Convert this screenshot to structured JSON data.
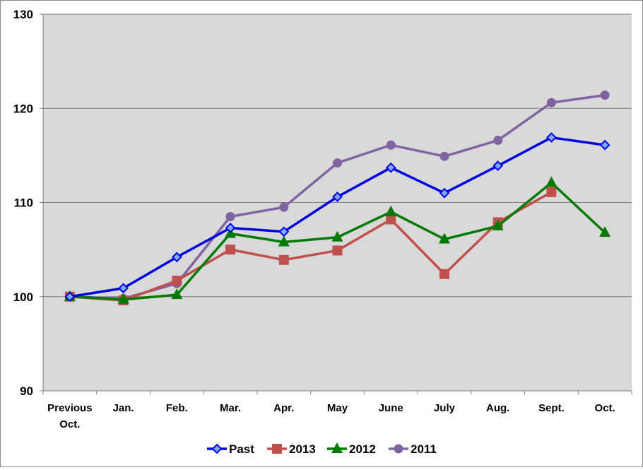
{
  "chart_data": {
    "type": "line",
    "title": "",
    "xlabel": "",
    "ylabel": "",
    "categories": [
      [
        "Previous",
        "Oct."
      ],
      [
        "Jan."
      ],
      [
        "Feb."
      ],
      [
        "Mar."
      ],
      [
        "Apr."
      ],
      [
        "May"
      ],
      [
        "June"
      ],
      [
        "July"
      ],
      [
        "Aug."
      ],
      [
        "Sept."
      ],
      [
        "Oct."
      ]
    ],
    "ylim": [
      90,
      130
    ],
    "yticks": [
      90,
      100,
      110,
      120,
      130
    ],
    "grid": true,
    "plot_background": "#d9d9d9",
    "legend_position": "bottom",
    "series": [
      {
        "name": "Past",
        "color": "#0000e0",
        "marker": "diamond",
        "values": [
          100,
          100.9,
          104.2,
          107.3,
          106.9,
          110.6,
          113.7,
          111.0,
          113.9,
          116.9,
          116.1
        ]
      },
      {
        "name": "2013",
        "color": "#c0504d",
        "marker": "square",
        "values": [
          100,
          99.6,
          101.7,
          105.0,
          103.9,
          104.9,
          108.2,
          102.4,
          107.9,
          111.1,
          null
        ]
      },
      {
        "name": "2012",
        "color": "#007a00",
        "marker": "triangle",
        "values": [
          100,
          99.7,
          100.2,
          106.7,
          105.8,
          106.3,
          109.0,
          106.1,
          107.5,
          112.1,
          106.8
        ]
      },
      {
        "name": "2011",
        "color": "#8064a2",
        "marker": "circle",
        "values": [
          100,
          99.8,
          101.4,
          108.5,
          109.5,
          114.2,
          116.1,
          114.9,
          116.6,
          120.6,
          121.4
        ]
      }
    ]
  }
}
